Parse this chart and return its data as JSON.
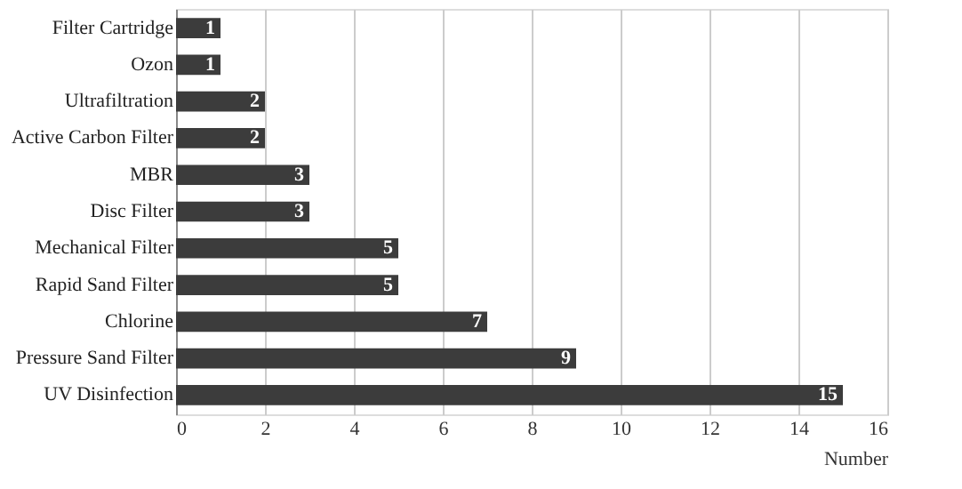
{
  "chart_data": {
    "type": "bar",
    "orientation": "horizontal",
    "xlabel": "Number",
    "categories": [
      "Filter Cartridge",
      "Ozon",
      "Ultrafiltration",
      "Active Carbon Filter",
      "MBR",
      "Disc Filter",
      "Mechanical Filter",
      "Rapid Sand Filter",
      "Chlorine",
      "Pressure Sand Filter",
      "UV Disinfection"
    ],
    "values": [
      1,
      1,
      2,
      2,
      3,
      3,
      5,
      5,
      7,
      9,
      15
    ],
    "color": "#3c3c3c",
    "xlim": [
      0,
      16
    ],
    "xticks": [
      0,
      2,
      4,
      6,
      8,
      10,
      12,
      14,
      16
    ],
    "grid": "x",
    "data_labels": true
  }
}
